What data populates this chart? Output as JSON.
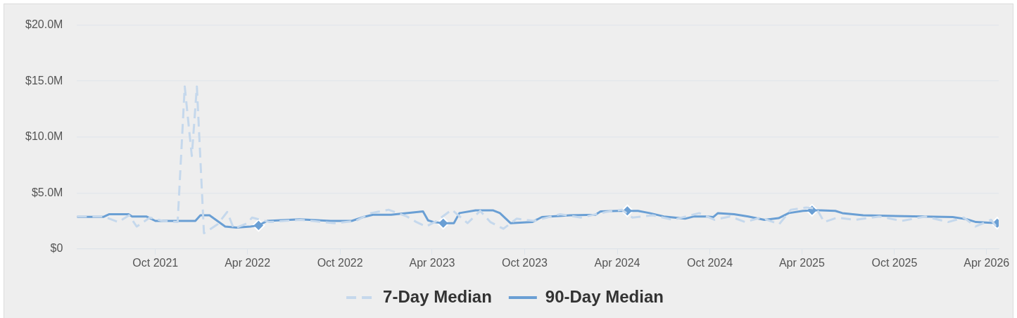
{
  "chart_data": {
    "type": "line",
    "xlim": [
      "2021-04-29",
      "2026-04-25"
    ],
    "ylim": [
      0,
      20
    ],
    "xticks": [
      {
        "value": "2021-10-01",
        "label": "Oct 2021"
      },
      {
        "value": "2022-04-01",
        "label": "Apr 2022"
      },
      {
        "value": "2022-10-01",
        "label": "Oct 2022"
      },
      {
        "value": "2023-04-01",
        "label": "Apr 2023"
      },
      {
        "value": "2023-10-01",
        "label": "Oct 2023"
      },
      {
        "value": "2024-04-01",
        "label": "Apr 2024"
      },
      {
        "value": "2024-10-01",
        "label": "Oct 2024"
      },
      {
        "value": "2025-04-01",
        "label": "Apr 2025"
      },
      {
        "value": "2025-10-01",
        "label": "Oct 2025"
      },
      {
        "value": "2026-04-01",
        "label": "Apr 2026"
      }
    ],
    "yticks": [
      {
        "value": 0,
        "label": "$0"
      },
      {
        "value": 5,
        "label": "$5.0M"
      },
      {
        "value": 10,
        "label": "$10.0M"
      },
      {
        "value": 15,
        "label": "$15.0M"
      },
      {
        "value": 20,
        "label": "$20.0M"
      }
    ],
    "grid": "y",
    "legend": "bottom",
    "series": [
      {
        "name": "7-Day Median",
        "color": "#c5d8ec",
        "line_style": "dashed",
        "marker": "none",
        "x": [
          "2021-04-29",
          "2021-06-20",
          "2021-07-20",
          "2021-08-10",
          "2021-08-25",
          "2021-09-20",
          "2021-10-15",
          "2021-11-14",
          "2021-11-28",
          "2021-12-12",
          "2021-12-22",
          "2022-01-05",
          "2022-02-01",
          "2022-02-20",
          "2022-03-05",
          "2022-04-01",
          "2022-04-10",
          "2022-05-15",
          "2022-07-15",
          "2022-09-20",
          "2022-11-01",
          "2022-12-01",
          "2023-01-05",
          "2023-02-10",
          "2023-03-01",
          "2023-03-20",
          "2023-04-10",
          "2023-05-10",
          "2023-06-10",
          "2023-07-05",
          "2023-07-25",
          "2023-08-20",
          "2023-09-15",
          "2023-10-20",
          "2023-12-10",
          "2024-01-20",
          "2024-03-10",
          "2024-04-10",
          "2024-05-01",
          "2024-06-10",
          "2024-07-20",
          "2024-09-10",
          "2024-10-10",
          "2024-11-10",
          "2024-12-10",
          "2025-01-10",
          "2025-02-15",
          "2025-03-10",
          "2025-04-10",
          "2025-04-30",
          "2025-05-15",
          "2025-06-10",
          "2025-07-15",
          "2025-09-01",
          "2025-10-15",
          "2025-12-01",
          "2026-01-15",
          "2026-02-15",
          "2026-03-10",
          "2026-04-10",
          "2026-04-20"
        ],
        "values": [
          2.9,
          2.9,
          2.4,
          3.0,
          2.0,
          2.8,
          2.5,
          2.4,
          14.5,
          8.3,
          14.5,
          1.4,
          2.2,
          3.3,
          1.8,
          2.3,
          2.8,
          2.4,
          2.6,
          2.3,
          2.5,
          3.2,
          3.5,
          2.9,
          2.4,
          2.0,
          2.5,
          3.5,
          2.3,
          3.4,
          2.4,
          1.8,
          2.7,
          2.5,
          3.1,
          2.8,
          3.3,
          3.5,
          2.8,
          3.0,
          2.6,
          3.2,
          2.6,
          2.9,
          2.4,
          2.8,
          2.2,
          3.5,
          3.7,
          3.6,
          2.4,
          2.8,
          2.6,
          2.9,
          2.5,
          2.9,
          2.4,
          2.8,
          2.0,
          2.6,
          2.0
        ]
      },
      {
        "name": "90-Day Median",
        "color": "#6a9fd4",
        "line_style": "solid",
        "marker": "none",
        "x": [
          "2021-04-29",
          "2021-06-20",
          "2021-07-02",
          "2021-08-09",
          "2021-08-16",
          "2021-09-13",
          "2021-10-01",
          "2021-12-19",
          "2021-12-29",
          "2022-01-16",
          "2022-02-16",
          "2022-03-10",
          "2022-04-07",
          "2022-04-23",
          "2022-05-10",
          "2022-07-13",
          "2022-09-12",
          "2022-10-24",
          "2022-11-16",
          "2022-12-05",
          "2023-01-10",
          "2023-03-14",
          "2023-03-24",
          "2023-04-04",
          "2023-04-23",
          "2023-05-14",
          "2023-05-25",
          "2023-06-26",
          "2023-07-30",
          "2023-08-13",
          "2023-09-03",
          "2023-10-16",
          "2023-11-04",
          "2023-12-30",
          "2024-02-18",
          "2024-02-28",
          "2024-04-03",
          "2024-04-21",
          "2024-05-12",
          "2024-06-04",
          "2024-07-02",
          "2024-08-13",
          "2024-08-31",
          "2024-09-24",
          "2024-10-08",
          "2024-10-17",
          "2024-11-18",
          "2024-12-16",
          "2025-01-17",
          "2025-02-14",
          "2025-03-06",
          "2025-04-03",
          "2025-04-21",
          "2025-05-09",
          "2025-06-06",
          "2025-06-20",
          "2025-07-31",
          "2026-01-24",
          "2026-02-21",
          "2026-03-11",
          "2026-04-04",
          "2026-04-22"
        ],
        "values": [
          2.86,
          2.86,
          3.1,
          3.1,
          2.9,
          2.9,
          2.5,
          2.5,
          3.0,
          3.0,
          2.0,
          1.9,
          2.0,
          2.1,
          2.5,
          2.65,
          2.5,
          2.5,
          2.85,
          3.05,
          3.05,
          3.35,
          2.55,
          2.4,
          2.3,
          2.3,
          3.2,
          3.45,
          3.45,
          3.2,
          2.3,
          2.4,
          2.85,
          3.0,
          3.05,
          3.35,
          3.4,
          3.4,
          3.4,
          3.2,
          2.9,
          2.7,
          2.9,
          2.9,
          2.85,
          3.2,
          3.1,
          2.9,
          2.6,
          2.75,
          3.2,
          3.4,
          3.45,
          3.45,
          3.4,
          3.2,
          3.0,
          2.85,
          2.65,
          2.4,
          2.35,
          2.3
        ]
      },
      {
        "type": "scatter",
        "color": "#6a9fd4",
        "marker": "diamond",
        "x": [
          "2022-04-23",
          "2023-04-23",
          "2024-04-21",
          "2025-04-21",
          "2026-04-22"
        ],
        "values": [
          2.1,
          2.3,
          3.4,
          3.45,
          2.3
        ]
      }
    ]
  }
}
